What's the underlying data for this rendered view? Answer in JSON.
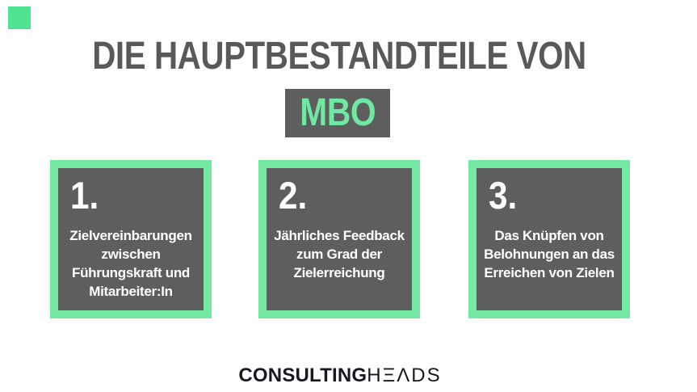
{
  "page": {
    "background": "#FFFFFF",
    "accent_green": "#74E9A4",
    "box_gray": "#5E5E5E",
    "title_gray": "#58595B",
    "logo_color": "#18181F"
  },
  "header": {
    "title": "DIE HAUPTBESTANDTEILE VON",
    "highlight": "MBO"
  },
  "steps": [
    {
      "number": "1.",
      "lines": [
        "Zielvereinbarungen",
        "zwischen",
        "Führungskraft und",
        "Mitarbeiter:In"
      ]
    },
    {
      "number": "2.",
      "lines": [
        "Jährliches Feedback",
        "zum Grad der",
        "Zielerreichung"
      ]
    },
    {
      "number": "3.",
      "lines": [
        "Das Knüpfen von",
        "Belohnungen an das",
        "Erreichen von Zielen"
      ]
    }
  ],
  "footer": {
    "brand_bold": "CONSULTING",
    "brand_light": "HΞΛDS"
  }
}
